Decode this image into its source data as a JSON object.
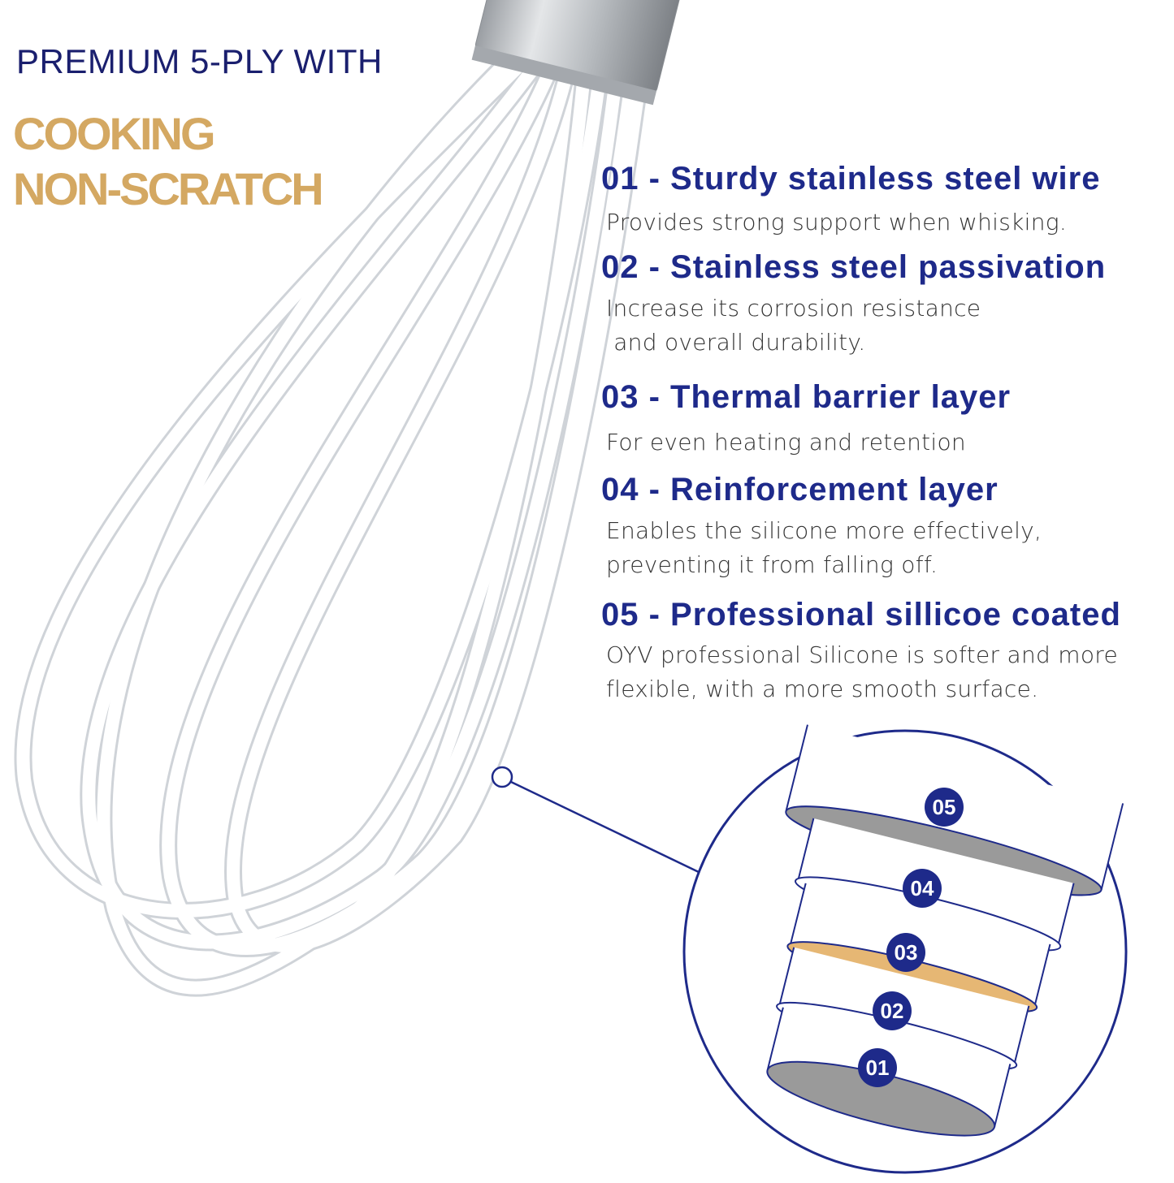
{
  "headline": {
    "kicker": "PREMIUM 5-PLY WITH",
    "line1": "COOKING",
    "line2": "NON-SCRATCH"
  },
  "features": [
    {
      "title": "01 - Sturdy stainless steel wire",
      "body": "Provides strong support when whisking."
    },
    {
      "title": "02 - Stainless steel passivation",
      "body": "Increase its corrosion resistance\n and overall durability."
    },
    {
      "title": "03 - Thermal barrier layer",
      "body": "For even heating and retention"
    },
    {
      "title": "04 - Reinforcement layer",
      "body": "Enables the silicone more effectively,\npreventing it from falling off."
    },
    {
      "title": "05 - Professional sillicoe coated",
      "body": "OYV professional Silicone is softer and more\nflexible, with a more smooth surface."
    }
  ],
  "layer_badges": [
    "05",
    "04",
    "03",
    "02",
    "01"
  ],
  "colors": {
    "navy": "#1e2a8a",
    "gold": "#d4a862",
    "body_text": "#333333"
  }
}
